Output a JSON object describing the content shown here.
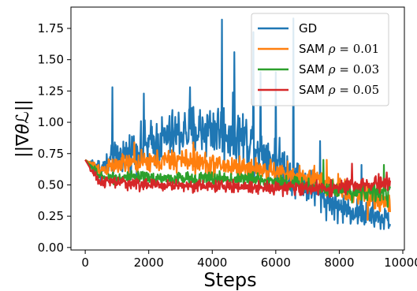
{
  "chart_data": {
    "type": "line",
    "xlabel": "Steps",
    "ylabel": "||∇θℒ||",
    "xlim": [
      -450,
      10050
    ],
    "ylim": [
      -0.02,
      1.92
    ],
    "xticks": [
      0,
      2000,
      4000,
      6000,
      8000,
      10000
    ],
    "xtick_labels": [
      "0",
      "2000",
      "4000",
      "6000",
      "8000",
      "10000"
    ],
    "yticks": [
      0.0,
      0.25,
      0.5,
      0.75,
      1.0,
      1.25,
      1.5,
      1.75
    ],
    "ytick_labels": [
      "0.00",
      "0.25",
      "0.50",
      "0.75",
      "1.00",
      "1.25",
      "1.50",
      "1.75"
    ],
    "grid": false,
    "legend_position": "top-right",
    "series": [
      {
        "name": "GD",
        "legend_prefix": "GD",
        "legend_rho": "",
        "legend_value": "",
        "color": "#1f77b4",
        "trend": [
          [
            0,
            0.7
          ],
          [
            500,
            0.62
          ],
          [
            1000,
            0.72
          ],
          [
            2000,
            0.82
          ],
          [
            3000,
            0.92
          ],
          [
            4000,
            0.95
          ],
          [
            5000,
            0.88
          ],
          [
            6000,
            0.7
          ],
          [
            7000,
            0.5
          ],
          [
            7500,
            0.4
          ],
          [
            8000,
            0.32
          ],
          [
            9000,
            0.25
          ],
          [
            9600,
            0.22
          ]
        ],
        "noise": [
          [
            0,
            0.04
          ],
          [
            500,
            0.1
          ],
          [
            1500,
            0.18
          ],
          [
            3000,
            0.22
          ],
          [
            4500,
            0.25
          ],
          [
            6000,
            0.2
          ],
          [
            7500,
            0.14
          ],
          [
            9600,
            0.1
          ]
        ],
        "spikes": [
          [
            860,
            1.28
          ],
          [
            1850,
            1.23
          ],
          [
            3300,
            1.28
          ],
          [
            4300,
            1.82
          ],
          [
            4700,
            1.56
          ],
          [
            5300,
            1.72
          ],
          [
            5520,
            1.4
          ],
          [
            6000,
            1.4
          ],
          [
            6560,
            1.83
          ],
          [
            7400,
            0.85
          ],
          [
            8700,
            0.66
          ]
        ]
      },
      {
        "name": "SAM ρ = 0.01",
        "legend_prefix": "SAM",
        "legend_rho": "ρ",
        "legend_value": "= 0.01",
        "color": "#ff7f0e",
        "trend": [
          [
            0,
            0.7
          ],
          [
            500,
            0.62
          ],
          [
            1000,
            0.66
          ],
          [
            2000,
            0.68
          ],
          [
            3000,
            0.7
          ],
          [
            4000,
            0.66
          ],
          [
            5000,
            0.64
          ],
          [
            6000,
            0.6
          ],
          [
            7000,
            0.55
          ],
          [
            8000,
            0.48
          ],
          [
            9000,
            0.4
          ],
          [
            9600,
            0.36
          ]
        ],
        "noise": [
          [
            0,
            0.03
          ],
          [
            1000,
            0.08
          ],
          [
            3000,
            0.1
          ],
          [
            6000,
            0.09
          ],
          [
            8500,
            0.12
          ],
          [
            9600,
            0.1
          ]
        ],
        "spikes": [
          [
            1550,
            0.84
          ],
          [
            3400,
            0.84
          ],
          [
            7600,
            0.7
          ],
          [
            8900,
            0.22
          ]
        ]
      },
      {
        "name": "SAM ρ = 0.03",
        "legend_prefix": "SAM",
        "legend_rho": "ρ",
        "legend_value": "= 0.03",
        "color": "#2ca02c",
        "trend": [
          [
            0,
            0.7
          ],
          [
            500,
            0.56
          ],
          [
            1000,
            0.56
          ],
          [
            3000,
            0.55
          ],
          [
            5000,
            0.55
          ],
          [
            6000,
            0.53
          ],
          [
            7000,
            0.49
          ],
          [
            8000,
            0.46
          ],
          [
            9000,
            0.44
          ],
          [
            9600,
            0.42
          ]
        ],
        "noise": [
          [
            0,
            0.03
          ],
          [
            1000,
            0.05
          ],
          [
            5000,
            0.06
          ],
          [
            9600,
            0.08
          ]
        ],
        "spikes": [
          [
            7500,
            0.7
          ],
          [
            9400,
            0.66
          ]
        ]
      },
      {
        "name": "SAM ρ = 0.05",
        "legend_prefix": "SAM",
        "legend_rho": "ρ",
        "legend_value": "= 0.05",
        "color": "#d62728",
        "trend": [
          [
            0,
            0.7
          ],
          [
            400,
            0.53
          ],
          [
            2000,
            0.5
          ],
          [
            4000,
            0.49
          ],
          [
            6000,
            0.48
          ],
          [
            7000,
            0.47
          ],
          [
            8000,
            0.48
          ],
          [
            9000,
            0.5
          ],
          [
            9600,
            0.52
          ]
        ],
        "noise": [
          [
            0,
            0.03
          ],
          [
            600,
            0.05
          ],
          [
            5000,
            0.05
          ],
          [
            8000,
            0.06
          ],
          [
            9600,
            0.07
          ]
        ],
        "spikes": [
          [
            8400,
            0.67
          ],
          [
            9500,
            0.6
          ]
        ]
      }
    ]
  }
}
